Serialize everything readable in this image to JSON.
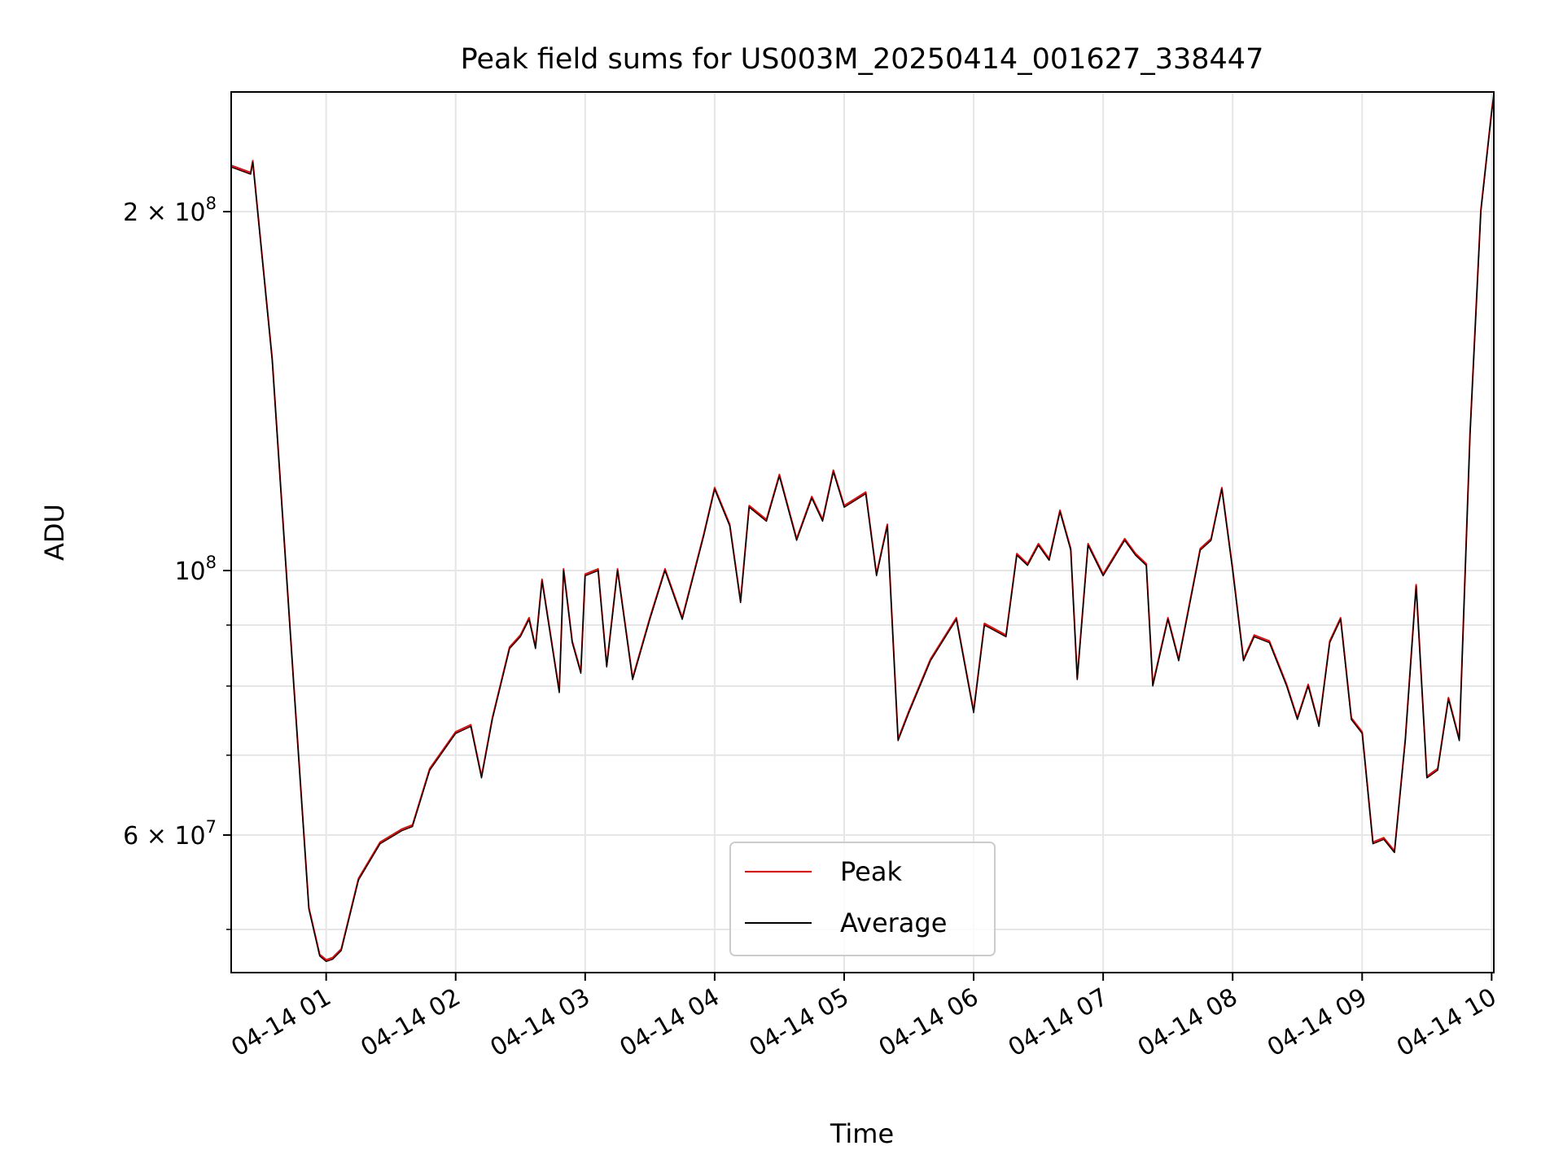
{
  "chart_data": {
    "type": "line",
    "title": "Peak field sums for US003M_20250414_001627_338447",
    "xlabel": "Time",
    "ylabel": "ADU",
    "y_scale": "log",
    "grid": true,
    "legend_position": "lower center",
    "xlim": [
      "2025-04-14 00:16",
      "2025-04-14 10:01"
    ],
    "ylim": [
      46000000,
      252000000
    ],
    "x_ticks": [
      {
        "t": "2025-04-14 01:00",
        "label": "04-14 01"
      },
      {
        "t": "2025-04-14 02:00",
        "label": "04-14 02"
      },
      {
        "t": "2025-04-14 03:00",
        "label": "04-14 03"
      },
      {
        "t": "2025-04-14 04:00",
        "label": "04-14 04"
      },
      {
        "t": "2025-04-14 05:00",
        "label": "04-14 05"
      },
      {
        "t": "2025-04-14 06:00",
        "label": "04-14 06"
      },
      {
        "t": "2025-04-14 07:00",
        "label": "04-14 07"
      },
      {
        "t": "2025-04-14 08:00",
        "label": "04-14 08"
      },
      {
        "t": "2025-04-14 09:00",
        "label": "04-14 09"
      },
      {
        "t": "2025-04-14 10:00",
        "label": "04-14 10"
      }
    ],
    "y_major_ticks": [
      {
        "v": 60000000,
        "label": "6 × 10",
        "exp": "7"
      },
      {
        "v": 100000000,
        "label": "10",
        "exp": "8"
      },
      {
        "v": 200000000,
        "label": "2 × 10",
        "exp": "8"
      }
    ],
    "y_minor_ticks": [
      50000000,
      70000000,
      80000000,
      90000000
    ],
    "series": [
      {
        "name": "Peak",
        "color": "#ff0000"
      },
      {
        "name": "Average",
        "color": "#000000"
      }
    ],
    "x": [
      "2025-04-14 00:16",
      "2025-04-14 00:25",
      "2025-04-14 00:26",
      "2025-04-14 00:35",
      "2025-04-14 00:45",
      "2025-04-14 00:52",
      "2025-04-14 00:57",
      "2025-04-14 01:00",
      "2025-04-14 01:03",
      "2025-04-14 01:07",
      "2025-04-14 01:15",
      "2025-04-14 01:25",
      "2025-04-14 01:35",
      "2025-04-14 01:40",
      "2025-04-14 01:48",
      "2025-04-14 02:00",
      "2025-04-14 02:07",
      "2025-04-14 02:12",
      "2025-04-14 02:17",
      "2025-04-14 02:25",
      "2025-04-14 02:30",
      "2025-04-14 02:34",
      "2025-04-14 02:37",
      "2025-04-14 02:40",
      "2025-04-14 02:48",
      "2025-04-14 02:50",
      "2025-04-14 02:54",
      "2025-04-14 02:58",
      "2025-04-14 03:00",
      "2025-04-14 03:06",
      "2025-04-14 03:10",
      "2025-04-14 03:15",
      "2025-04-14 03:22",
      "2025-04-14 03:30",
      "2025-04-14 03:37",
      "2025-04-14 03:45",
      "2025-04-14 03:55",
      "2025-04-14 04:00",
      "2025-04-14 04:07",
      "2025-04-14 04:12",
      "2025-04-14 04:16",
      "2025-04-14 04:24",
      "2025-04-14 04:30",
      "2025-04-14 04:38",
      "2025-04-14 04:45",
      "2025-04-14 04:50",
      "2025-04-14 04:55",
      "2025-04-14 05:00",
      "2025-04-14 05:10",
      "2025-04-14 05:15",
      "2025-04-14 05:20",
      "2025-04-14 05:25",
      "2025-04-14 05:30",
      "2025-04-14 05:40",
      "2025-04-14 05:52",
      "2025-04-14 06:00",
      "2025-04-14 06:05",
      "2025-04-14 06:15",
      "2025-04-14 06:20",
      "2025-04-14 06:25",
      "2025-04-14 06:30",
      "2025-04-14 06:35",
      "2025-04-14 06:40",
      "2025-04-14 06:45",
      "2025-04-14 06:48",
      "2025-04-14 06:53",
      "2025-04-14 07:00",
      "2025-04-14 07:10",
      "2025-04-14 07:15",
      "2025-04-14 07:20",
      "2025-04-14 07:23",
      "2025-04-14 07:30",
      "2025-04-14 07:35",
      "2025-04-14 07:45",
      "2025-04-14 07:50",
      "2025-04-14 07:55",
      "2025-04-14 08:00",
      "2025-04-14 08:05",
      "2025-04-14 08:10",
      "2025-04-14 08:17",
      "2025-04-14 08:25",
      "2025-04-14 08:30",
      "2025-04-14 08:35",
      "2025-04-14 08:40",
      "2025-04-14 08:45",
      "2025-04-14 08:50",
      "2025-04-14 08:55",
      "2025-04-14 09:00",
      "2025-04-14 09:05",
      "2025-04-14 09:10",
      "2025-04-14 09:15",
      "2025-04-14 09:20",
      "2025-04-14 09:25",
      "2025-04-14 09:30",
      "2025-04-14 09:35",
      "2025-04-14 09:40",
      "2025-04-14 09:45",
      "2025-04-14 09:50",
      "2025-04-14 09:55",
      "2025-04-14 10:00",
      "2025-04-14 10:01"
    ],
    "y": [
      218000000,
      215000000,
      220000000,
      150000000,
      80000000,
      52000000,
      47500000,
      47000000,
      47200000,
      48000000,
      55000000,
      59000000,
      60500000,
      61000000,
      68000000,
      73000000,
      74000000,
      67000000,
      75000000,
      86000000,
      88000000,
      91000000,
      86000000,
      98000000,
      79000000,
      100000000,
      87000000,
      82000000,
      99000000,
      100000000,
      83000000,
      100000000,
      81000000,
      91000000,
      100000000,
      91000000,
      107000000,
      117000000,
      109000000,
      94000000,
      113000000,
      110000000,
      120000000,
      106000000,
      115000000,
      110000000,
      121000000,
      113000000,
      116000000,
      99000000,
      109000000,
      72000000,
      76000000,
      84000000,
      91000000,
      76000000,
      90000000,
      88000000,
      103000000,
      101000000,
      105000000,
      102000000,
      112000000,
      104000000,
      81000000,
      105000000,
      99000000,
      106000000,
      103000000,
      101000000,
      80000000,
      91000000,
      84000000,
      104000000,
      106000000,
      117000000,
      100000000,
      84000000,
      88000000,
      87000000,
      80000000,
      75000000,
      80000000,
      74000000,
      87000000,
      91000000,
      75000000,
      73000000,
      59000000,
      59500000,
      58000000,
      72000000,
      97000000,
      67000000,
      68000000,
      78000000,
      72000000,
      130000000,
      200000000,
      242000000,
      250000000
    ]
  },
  "legend": {
    "peak_label": "Peak",
    "average_label": "Average"
  }
}
